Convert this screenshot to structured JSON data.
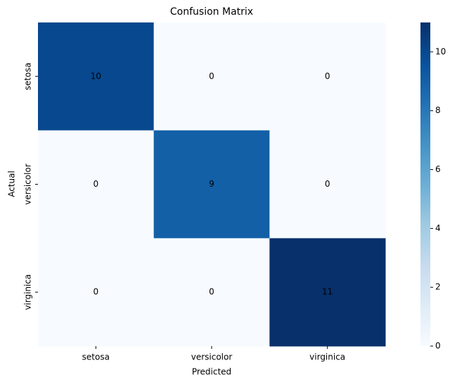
{
  "chart_data": {
    "type": "heatmap",
    "title": "Confusion Matrix",
    "x_label": "Predicted",
    "y_label": "Actual",
    "x_categories": [
      "setosa",
      "versicolor",
      "virginica"
    ],
    "y_categories": [
      "setosa",
      "versicolor",
      "virginica"
    ],
    "values": [
      [
        10,
        0,
        0
      ],
      [
        0,
        9,
        0
      ],
      [
        0,
        0,
        11
      ]
    ],
    "colormap": "Blues",
    "zlim": [
      0,
      11
    ],
    "zticks": [
      0,
      2,
      4,
      6,
      8,
      10
    ]
  }
}
